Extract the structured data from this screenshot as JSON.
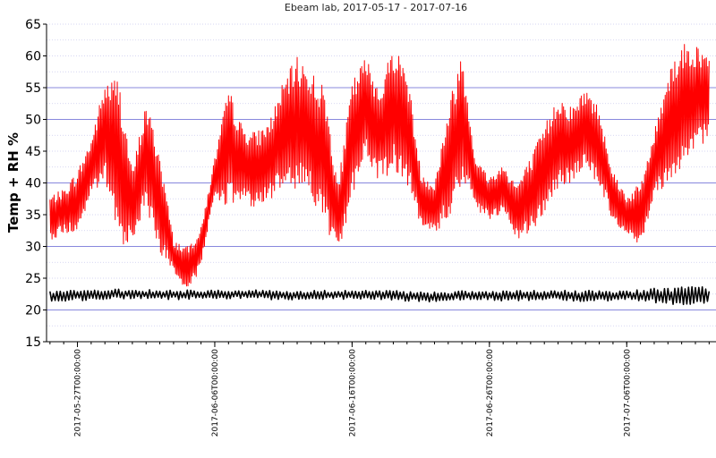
{
  "chart_data": {
    "type": "line",
    "title": "Ebeam lab, 2017-05-17 - 2017-07-16",
    "xlabel": "",
    "ylabel": "Temp + RH %",
    "ylim": [
      15,
      65
    ],
    "xlim": [
      "2017-05-24T18:00:00",
      "2017-07-12T12:00:00"
    ],
    "yticks": [
      15,
      20,
      25,
      30,
      35,
      40,
      45,
      50,
      55,
      60,
      65
    ],
    "major_gridlines_y": [
      20,
      30,
      40,
      50,
      55
    ],
    "xticks": [
      "2017-05-27T00:00:00",
      "2017-06-06T00:00:00",
      "2017-06-16T00:00:00",
      "2017-06-26T00:00:00",
      "2017-07-06T00:00:00"
    ],
    "grid": true,
    "colors": {
      "rh": "#ff0000",
      "temp": "#000000",
      "major_grid": "#8888dd",
      "minor_grid": "#c9c9ee"
    },
    "series": [
      {
        "color": "#ff0000",
        "x": [
          "2017-05-25",
          "2017-05-26",
          "2017-05-27",
          "2017-05-28",
          "2017-05-29",
          "2017-05-30",
          "2017-05-31",
          "2017-06-01",
          "2017-06-02",
          "2017-06-03",
          "2017-06-04",
          "2017-06-05",
          "2017-06-06",
          "2017-06-07",
          "2017-06-08",
          "2017-06-09",
          "2017-06-10",
          "2017-06-11",
          "2017-06-12",
          "2017-06-13",
          "2017-06-14",
          "2017-06-15",
          "2017-06-16",
          "2017-06-17",
          "2017-06-18",
          "2017-06-19",
          "2017-06-20",
          "2017-06-21",
          "2017-06-22",
          "2017-06-23",
          "2017-06-24",
          "2017-06-25",
          "2017-06-26",
          "2017-06-27",
          "2017-06-28",
          "2017-06-29",
          "2017-06-30",
          "2017-07-01",
          "2017-07-02",
          "2017-07-03",
          "2017-07-04",
          "2017-07-05",
          "2017-07-06",
          "2017-07-07",
          "2017-07-08",
          "2017-07-09",
          "2017-07-10",
          "2017-07-11",
          "2017-07-12"
        ],
        "low": [
          31,
          32,
          32,
          38,
          40,
          30,
          31,
          36,
          29,
          26,
          22,
          27,
          38,
          36,
          37,
          36,
          37,
          40,
          39,
          38,
          33,
          28,
          38,
          44,
          40,
          42,
          40,
          33,
          32,
          34,
          40,
          36,
          34,
          35,
          31,
          32,
          35,
          39,
          40,
          43,
          39,
          34,
          32,
          30,
          38,
          40,
          42,
          44,
          48
        ],
        "high": [
          38,
          39,
          42,
          47,
          56,
          57,
          42,
          53,
          45,
          31,
          30,
          33,
          44,
          55,
          49,
          48,
          50,
          56,
          60,
          58,
          55,
          40,
          56,
          60,
          55,
          62,
          58,
          42,
          40,
          52,
          61,
          44,
          41,
          43,
          40,
          44,
          49,
          54,
          52,
          55,
          52,
          42,
          38,
          40,
          48,
          58,
          62,
          62,
          60
        ]
      },
      {
        "color": "#000000",
        "x": [
          "2017-05-25",
          "2017-05-28",
          "2017-05-31",
          "2017-06-03",
          "2017-06-06",
          "2017-06-09",
          "2017-06-12",
          "2017-06-15",
          "2017-06-18",
          "2017-06-21",
          "2017-06-24",
          "2017-06-27",
          "2017-06-30",
          "2017-07-03",
          "2017-07-06",
          "2017-07-09",
          "2017-07-12"
        ],
        "low": [
          21.3,
          21.5,
          21.8,
          21.6,
          21.8,
          21.7,
          21.5,
          21.6,
          21.6,
          21.2,
          21.6,
          21.4,
          21.5,
          21.3,
          21.5,
          20.9,
          20.7
        ],
        "high": [
          23.0,
          23.2,
          23.3,
          23.1,
          23.2,
          23.2,
          23.0,
          23.2,
          23.1,
          22.9,
          23.0,
          23.0,
          23.1,
          23.1,
          23.1,
          23.6,
          23.8
        ]
      }
    ]
  }
}
